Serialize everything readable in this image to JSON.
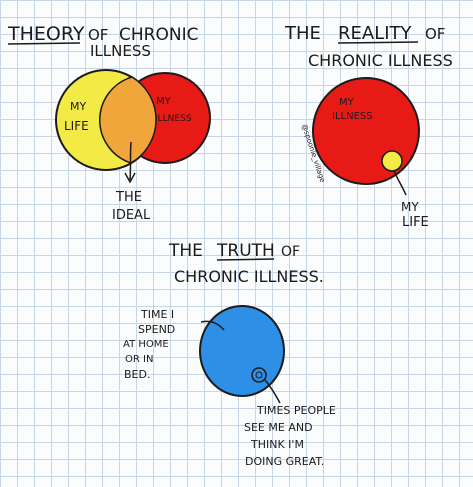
{
  "theory": {
    "title_line1_a": "THEORY",
    "title_line1_b": "OF",
    "title_line1_c": "CHRONIC",
    "title_line2": "ILLNESS",
    "left_label_1": "MY",
    "left_label_2": "LIFE",
    "right_label_1": "MY",
    "right_label_2": "ILLNESS",
    "ideal_1": "THE",
    "ideal_2": "IDEAL"
  },
  "reality": {
    "title_line1_a": "THE",
    "title_line1_b": "REALITY",
    "title_line1_c": "OF",
    "title_line2": "CHRONIC ILLNESS",
    "circle_label_1": "MY",
    "circle_label_2": "ILLNESS",
    "life_1": "MY",
    "life_2": "LIFE",
    "signature": "@spoonie_village"
  },
  "truth": {
    "title_line1_a": "THE",
    "title_line1_b": "TRUTH",
    "title_line1_c": "OF",
    "title_line2": "CHRONIC ILLNESS.",
    "home_1": "TIME I",
    "home_2": "SPEND",
    "home_3": "AT HOME",
    "home_4": "OR IN",
    "home_5": "BED.",
    "great_1": "TIMES PEOPLE",
    "great_2": "SEE ME AND",
    "great_3": "THINK I'M",
    "great_4": "DOING GREAT."
  },
  "colors": {
    "life_yellow": "#f4ea45",
    "illness_red": "#e81a16",
    "overlap_orange": "#f0a63b",
    "truth_blue": "#2d8fe6",
    "grid": "#c9d6e6"
  }
}
